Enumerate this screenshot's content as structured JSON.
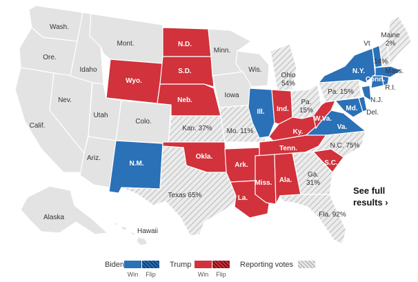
{
  "colors": {
    "biden": "#2a71b7",
    "biden_flip": "#2a71b7",
    "trump": "#d1323b",
    "trump_flip": "#d1323b",
    "no_result": "#e3e3e3",
    "reporting_bg": "#ececec",
    "reporting_hatch": "#bdbdbd"
  },
  "states": [
    {
      "name": "Wash.",
      "status": "none"
    },
    {
      "name": "Ore.",
      "status": "none"
    },
    {
      "name": "Calif.",
      "status": "none"
    },
    {
      "name": "Nev.",
      "status": "none"
    },
    {
      "name": "Idaho",
      "status": "none"
    },
    {
      "name": "Mont.",
      "status": "none"
    },
    {
      "name": "Utah",
      "status": "none"
    },
    {
      "name": "Ariz.",
      "status": "none"
    },
    {
      "name": "Colo.",
      "status": "none"
    },
    {
      "name": "Minn.",
      "status": "none"
    },
    {
      "name": "Wis.",
      "status": "none"
    },
    {
      "name": "Iowa",
      "status": "none"
    },
    {
      "name": "Alaska",
      "status": "none"
    },
    {
      "name": "Hawaii",
      "status": "none"
    },
    {
      "name": "Wyo.",
      "status": "trump"
    },
    {
      "name": "N.D.",
      "status": "trump"
    },
    {
      "name": "S.D.",
      "status": "trump"
    },
    {
      "name": "Neb.",
      "status": "trump"
    },
    {
      "name": "Okla.",
      "status": "trump"
    },
    {
      "name": "Ark.",
      "status": "trump"
    },
    {
      "name": "La.",
      "status": "trump"
    },
    {
      "name": "Miss.",
      "status": "trump"
    },
    {
      "name": "Ala.",
      "status": "trump"
    },
    {
      "name": "Tenn.",
      "status": "trump"
    },
    {
      "name": "Ky.",
      "status": "trump"
    },
    {
      "name": "Ind.",
      "status": "trump"
    },
    {
      "name": "W.Va.",
      "status": "trump"
    },
    {
      "name": "S.C.",
      "status": "trump"
    },
    {
      "name": "N.M.",
      "status": "biden"
    },
    {
      "name": "Ill.",
      "status": "biden"
    },
    {
      "name": "Va.",
      "status": "biden"
    },
    {
      "name": "N.Y.",
      "status": "biden"
    },
    {
      "name": "Vt",
      "status": "biden"
    },
    {
      "name": "Mass.",
      "status": "biden"
    },
    {
      "name": "Conn.",
      "status": "biden"
    },
    {
      "name": "R.I.",
      "status": "biden"
    },
    {
      "name": "N.J.",
      "status": "biden"
    },
    {
      "name": "Del.",
      "status": "biden"
    },
    {
      "name": "Md.",
      "status": "biden"
    },
    {
      "name": "Texas",
      "status": "reporting",
      "pct": "65%"
    },
    {
      "name": "Kan.",
      "status": "reporting",
      "pct": "37%"
    },
    {
      "name": "Mo.",
      "status": "reporting",
      "pct": "11%"
    },
    {
      "name": "Mich.",
      "status": "reporting",
      "pct": "16%"
    },
    {
      "name": "Ohio",
      "status": "reporting",
      "pct": "54%"
    },
    {
      "name": "Pa.",
      "status": "reporting",
      "pct": "15%"
    },
    {
      "name": "N.C.",
      "status": "reporting",
      "pct": "75%"
    },
    {
      "name": "Ga.",
      "status": "reporting",
      "pct": "31%"
    },
    {
      "name": "Fla.",
      "status": "reporting",
      "pct": "92%"
    },
    {
      "name": "Maine",
      "status": "reporting",
      "pct": "2%"
    },
    {
      "name": "N.H.",
      "status": "reporting",
      "pct": "14%"
    }
  ],
  "see_full": {
    "line1": "See full",
    "line2": "results ›"
  },
  "legend": {
    "biden_label": "Biden",
    "trump_label": "Trump",
    "reporting_label": "Reporting votes",
    "win_label": "Win",
    "flip_label": "Flip"
  }
}
